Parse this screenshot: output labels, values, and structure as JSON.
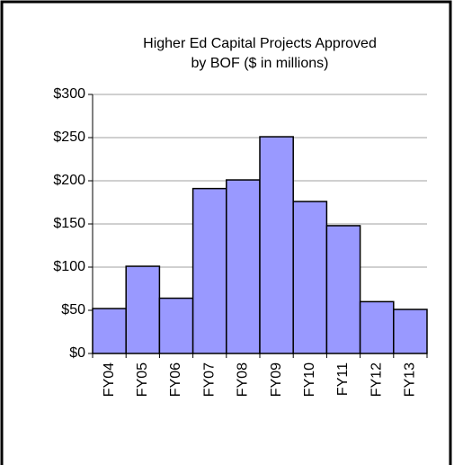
{
  "chart_data": {
    "type": "bar",
    "title": [
      "Higher Ed Capital Projects Approved",
      "by BOF ($ in millions)"
    ],
    "categories": [
      "FY04",
      "FY05",
      "FY06",
      "FY07",
      "FY08",
      "FY09",
      "FY10",
      "FY11",
      "FY12",
      "FY13"
    ],
    "values": [
      52,
      101,
      64,
      191,
      201,
      251,
      176,
      148,
      60,
      51
    ],
    "color": "#9999ff",
    "ylim": [
      0,
      300
    ],
    "yticks": [
      {
        "value": 0,
        "label": "$0"
      },
      {
        "value": 50,
        "label": "$50"
      },
      {
        "value": 100,
        "label": "$100"
      },
      {
        "value": 150,
        "label": "$150"
      },
      {
        "value": 200,
        "label": "$200"
      },
      {
        "value": 250,
        "label": "$250"
      },
      {
        "value": 300,
        "label": "$300"
      }
    ],
    "grid": true
  }
}
